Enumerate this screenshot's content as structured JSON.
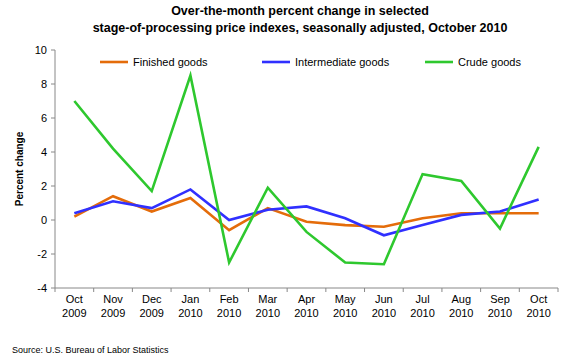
{
  "chart_data": {
    "type": "line",
    "title": "Over-the-month percent change in selected\nstage-of-processing price indexes, seasonally adjusted, October 2010",
    "y_label": "Percent change",
    "source": "Source: U.S. Bureau of Labor Statistics",
    "categories": [
      "Oct\n2009",
      "Nov\n2009",
      "Dec\n2009",
      "Jan\n2010",
      "Feb\n2010",
      "Mar\n2010",
      "Apr\n2010",
      "May\n2010",
      "Jun\n2010",
      "Jul\n2010",
      "Aug\n2010",
      "Sep\n2010",
      "Oct\n2010"
    ],
    "series": [
      {
        "name": "Finished goods",
        "color": "#e46c0a",
        "values": [
          0.2,
          1.4,
          0.5,
          1.3,
          -0.6,
          0.7,
          -0.1,
          -0.3,
          -0.4,
          0.1,
          0.4,
          0.4,
          0.4
        ]
      },
      {
        "name": "Intermediate goods",
        "color": "#3030ff",
        "values": [
          0.4,
          1.1,
          0.7,
          1.8,
          0.0,
          0.6,
          0.8,
          0.1,
          -0.9,
          -0.3,
          0.3,
          0.5,
          1.2
        ]
      },
      {
        "name": "Crude goods",
        "color": "#2ec82e",
        "values": [
          7.0,
          4.2,
          1.7,
          8.5,
          -2.5,
          1.9,
          -0.7,
          -2.5,
          -2.6,
          2.7,
          2.3,
          -0.5,
          4.3
        ]
      }
    ],
    "ylim": [
      -4,
      10
    ],
    "yticks": [
      -4,
      -2,
      0,
      2,
      4,
      6,
      8,
      10
    ],
    "grid": false,
    "legend": "top"
  }
}
